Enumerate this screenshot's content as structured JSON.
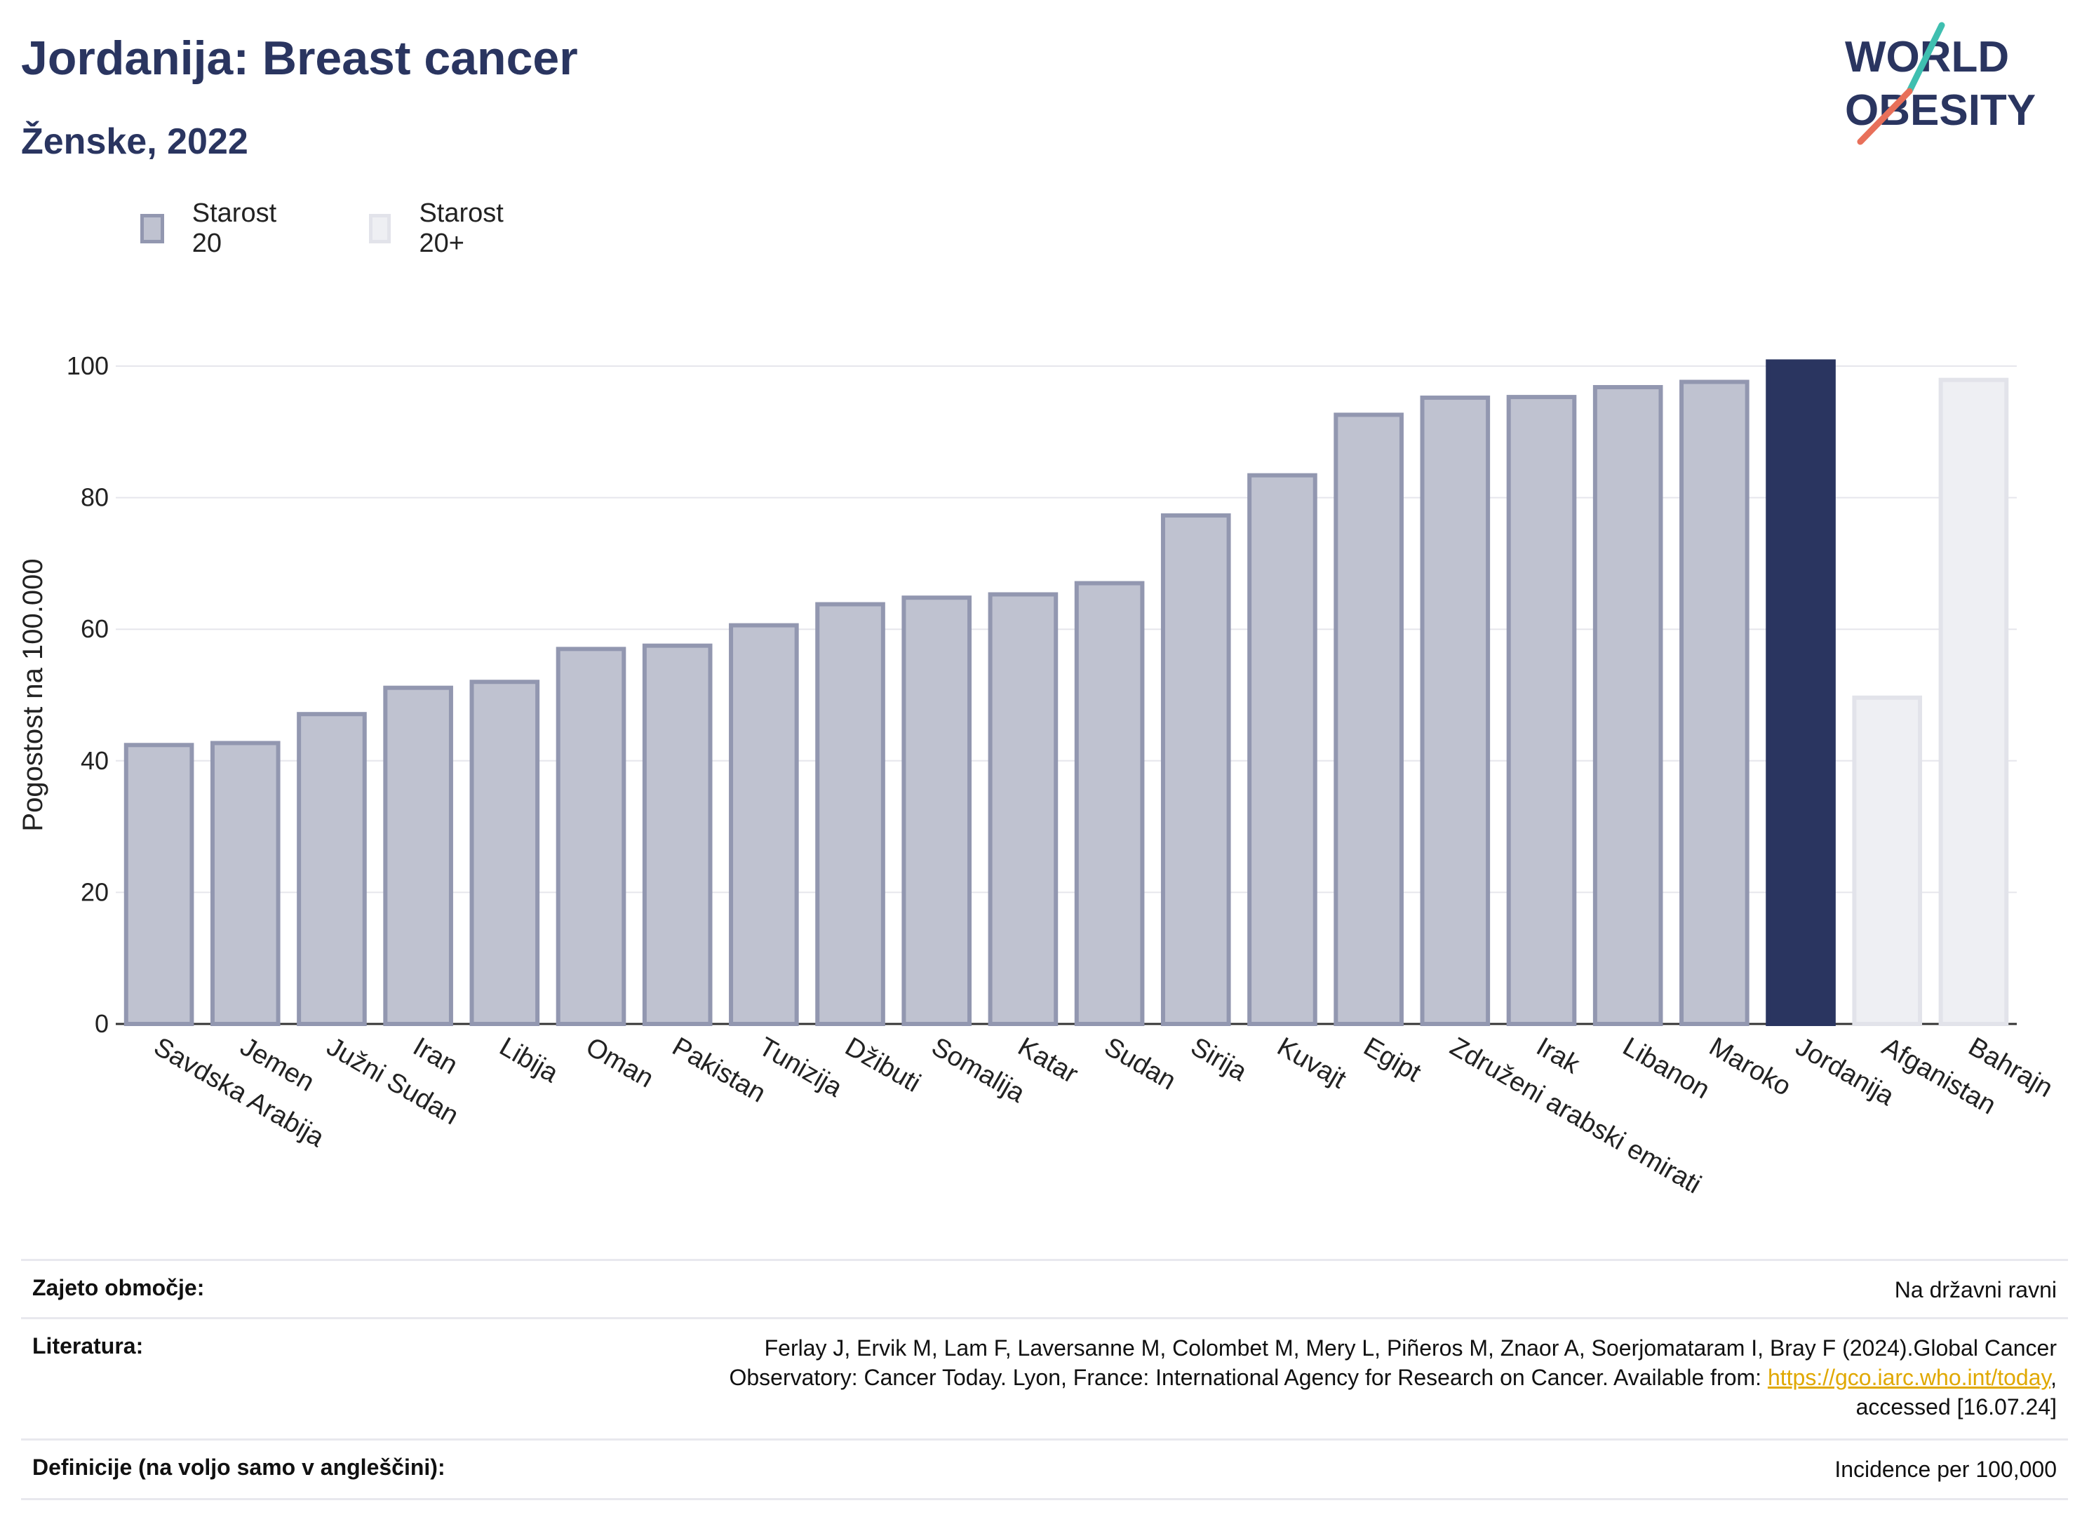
{
  "header": {
    "title": "Jordanija: Breast cancer",
    "subtitle": "Ženske, 2022"
  },
  "logo": {
    "line1": "WORLD",
    "line2": "OBESITY",
    "accent_colors": [
      "#3fbfb0",
      "#e8705a"
    ]
  },
  "legend": {
    "items": [
      {
        "label": "Starost 20",
        "color": "#bfc2d0",
        "border": "#9297b0"
      },
      {
        "label": "Starost 20+",
        "color": "#eeeff3",
        "border": "#e2e3ea"
      }
    ]
  },
  "colors": {
    "bar": "#bfc2d0",
    "bar_border": "#9297b0",
    "highlight": "#2a3560",
    "light": "#eeeff3",
    "light_border": "#e2e3ea"
  },
  "chart_data": {
    "type": "bar",
    "ylabel": "Pogostost na 100.000",
    "ylim": [
      0,
      100
    ],
    "yticks": [
      "0",
      "20",
      "40",
      "60",
      "80",
      "100"
    ],
    "categories": [
      "Savdska Arabija",
      "Jemen",
      "Južni Sudan",
      "Iran",
      "Libija",
      "Oman",
      "Pakistan",
      "Tunizija",
      "Džibuti",
      "Somalija",
      "Katar",
      "Sudan",
      "Sirija",
      "Kuvajt",
      "Egipt",
      "Združeni arabski emirati",
      "Irak",
      "Libanon",
      "Maroko",
      "Jordanija",
      "Afganistan",
      "Bahrajn"
    ],
    "values": [
      42.4,
      42.7,
      47.1,
      51.1,
      52.0,
      57.0,
      57.5,
      60.6,
      63.8,
      64.8,
      65.3,
      67.0,
      77.3,
      83.4,
      92.6,
      95.2,
      95.3,
      96.8,
      97.6,
      100.7,
      49.6,
      97.9
    ],
    "groups": [
      "Starost 20",
      "Starost 20",
      "Starost 20",
      "Starost 20",
      "Starost 20",
      "Starost 20",
      "Starost 20",
      "Starost 20",
      "Starost 20",
      "Starost 20",
      "Starost 20",
      "Starost 20",
      "Starost 20",
      "Starost 20",
      "Starost 20",
      "Starost 20",
      "Starost 20",
      "Starost 20",
      "Starost 20",
      "highlight",
      "Starost 20+",
      "Starost 20+"
    ],
    "grid": true
  },
  "footer": {
    "rows": [
      {
        "label": "Zajeto območje:",
        "value": "Na državni ravni"
      },
      {
        "label": "Literatura:",
        "value_line1": "Ferlay J, Ervik M, Lam F, Laversanne M, Colombet M, Mery L, Piñeros M, Znaor A, Soerjomataram I, Bray F (2024).Global Cancer",
        "value_line2_pre": "Observatory: Cancer Today. Lyon, France: International Agency for Research on Cancer. Available from: ",
        "link": "https://gco.iarc.who.int/today",
        "value_line2_post": ",",
        "value_line3": "accessed [16.07.24]"
      },
      {
        "label": "Definicije (na voljo samo v angleščini):",
        "value": "Incidence per 100,000"
      }
    ]
  }
}
